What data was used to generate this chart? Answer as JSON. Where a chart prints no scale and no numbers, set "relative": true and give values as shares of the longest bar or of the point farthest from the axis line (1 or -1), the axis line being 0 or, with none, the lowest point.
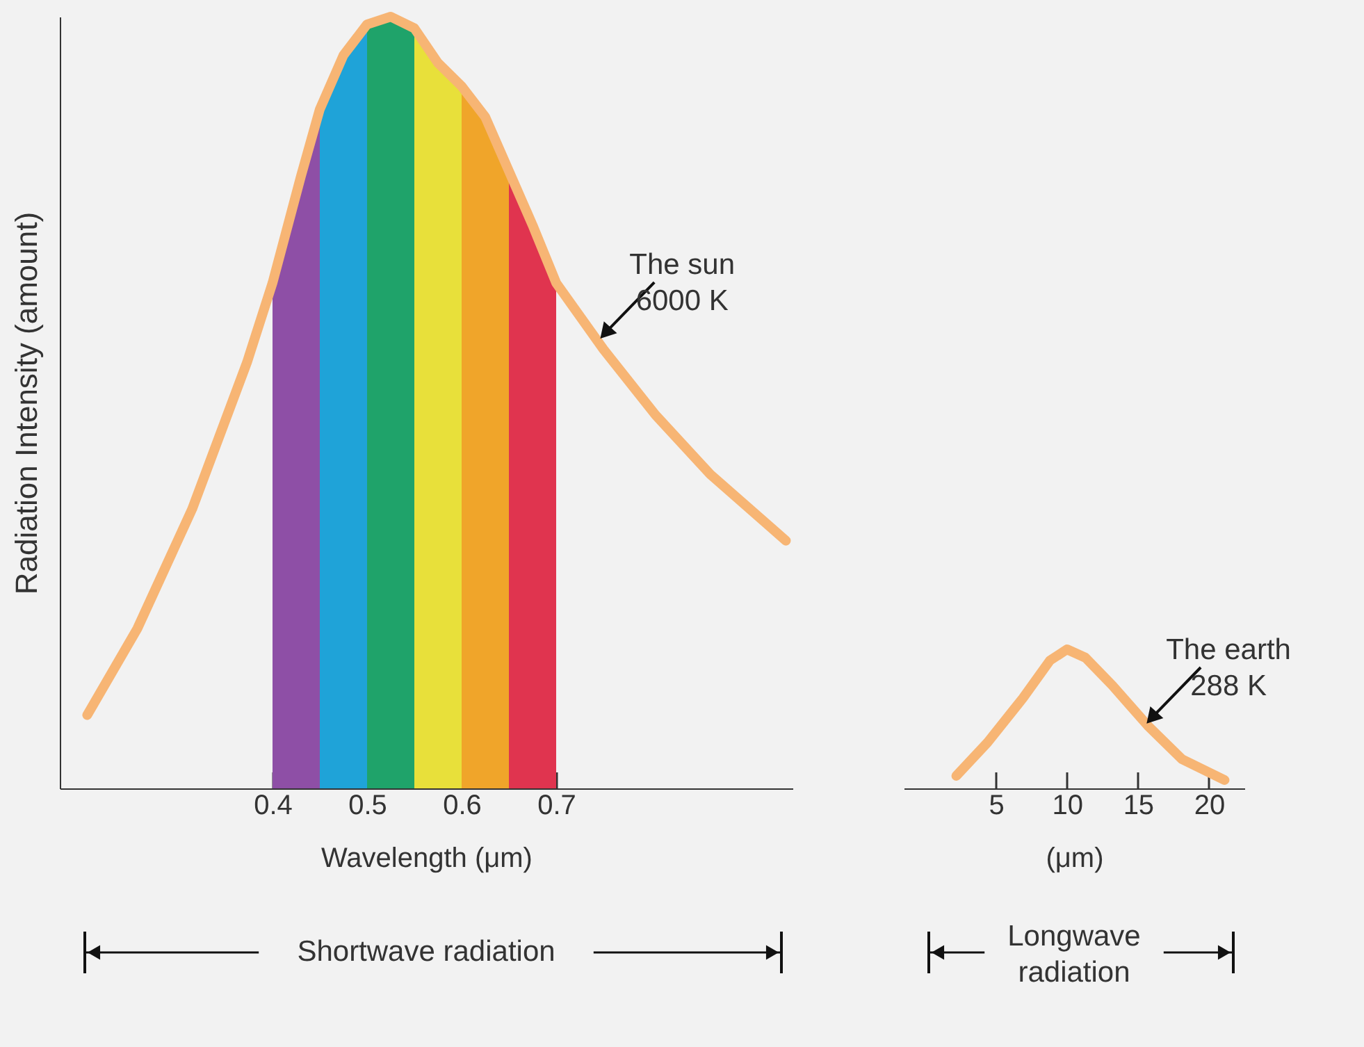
{
  "chart_data": [
    {
      "type": "line",
      "relative": true,
      "ylabel": "Radiation Intensity (amount)",
      "xlabel": "Wavelength (μm)",
      "xlim": [
        0.175,
        0.95
      ],
      "xticks": [
        0.4,
        0.5,
        0.6,
        0.7
      ],
      "grid": false,
      "series": [
        {
          "type": "area",
          "color": "#8e4fa6",
          "x": [
            0.4,
            0.43,
            0.45
          ],
          "values": [
            0.655,
            0.793,
            0.88
          ]
        },
        {
          "type": "area",
          "color": "#1fa3d8",
          "x": [
            0.45,
            0.475,
            0.5
          ],
          "values": [
            0.88,
            0.95,
            0.99
          ]
        },
        {
          "type": "area",
          "color": "#1fa36a",
          "x": [
            0.5,
            0.525,
            0.55
          ],
          "values": [
            0.99,
            1.0,
            0.985
          ]
        },
        {
          "type": "area",
          "color": "#e8e03a",
          "x": [
            0.55,
            0.575,
            0.6
          ],
          "values": [
            0.985,
            0.94,
            0.91
          ]
        },
        {
          "type": "area",
          "color": "#f0a52a",
          "x": [
            0.6,
            0.625,
            0.65
          ],
          "values": [
            0.91,
            0.87,
            0.8
          ]
        },
        {
          "type": "area",
          "color": "#e0344f",
          "x": [
            0.65,
            0.675,
            0.7
          ],
          "values": [
            0.8,
            0.73,
            0.655
          ]
        },
        {
          "type": "line",
          "color": "#f7b574",
          "x": [
            0.204,
            0.257,
            0.315,
            0.373,
            0.4,
            0.43,
            0.45,
            0.475,
            0.5,
            0.525,
            0.55,
            0.575,
            0.6,
            0.625,
            0.65,
            0.675,
            0.7,
            0.75,
            0.805,
            0.863,
            0.943
          ],
          "values": [
            0.095,
            0.207,
            0.362,
            0.552,
            0.655,
            0.793,
            0.88,
            0.95,
            0.99,
            1.0,
            0.985,
            0.94,
            0.91,
            0.87,
            0.8,
            0.73,
            0.655,
            0.569,
            0.484,
            0.407,
            0.321
          ]
        }
      ],
      "annotations": [
        {
          "text": "The sun\n6000 K",
          "x": 0.745,
          "y": 0.58
        },
        "Shortwave radiation"
      ]
    },
    {
      "type": "line",
      "relative": true,
      "xlabel": "(μm)",
      "xlim": [
        -1.5,
        22.5
      ],
      "xticks": [
        5,
        10,
        15,
        20
      ],
      "grid": false,
      "series": [
        {
          "type": "line",
          "color": "#f7b574",
          "x": [
            2.2,
            4.4,
            6.9,
            8.8,
            10,
            11.3,
            13.2,
            15.7,
            18.1,
            21.1
          ],
          "values": [
            0.09,
            0.33,
            0.65,
            0.92,
            1,
            0.94,
            0.74,
            0.45,
            0.21,
            0.06
          ]
        }
      ],
      "annotations": [
        {
          "text": "The earth\n288 K",
          "x": 15.5,
          "y": 0.45
        },
        "Longwave\nradiation"
      ]
    }
  ]
}
